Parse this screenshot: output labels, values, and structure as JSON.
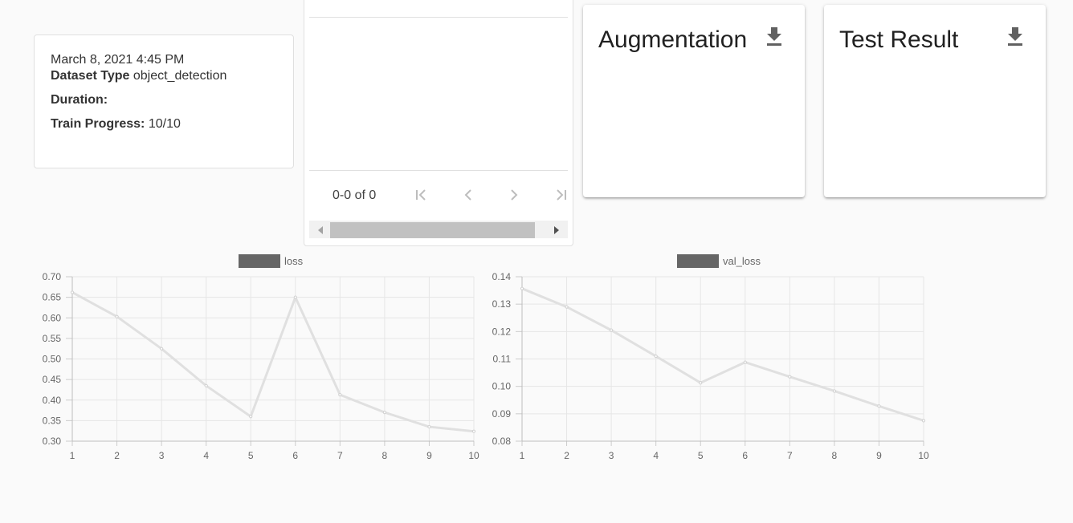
{
  "info": {
    "date": "March 8, 2021 4:45 PM",
    "dataset_type_label": "Dataset Type",
    "dataset_type_value": "object_detection",
    "duration_label": "Duration:",
    "train_progress_label": "Train Progress:",
    "train_progress_value": "10/10"
  },
  "table": {
    "pager_text": "0-0 of 0",
    "icons": [
      "first-page-icon",
      "prev-page-icon",
      "next-page-icon",
      "last-page-icon"
    ]
  },
  "cards": {
    "augmentation_title": "Augmentation",
    "test_result_title": "Test Result",
    "icon": "download-icon"
  },
  "chart_data": [
    {
      "type": "line",
      "x": [
        1,
        2,
        3,
        4,
        5,
        6,
        7,
        8,
        9,
        10
      ],
      "series": [
        {
          "name": "loss",
          "values": [
            0.662,
            0.603,
            0.525,
            0.435,
            0.36,
            0.65,
            0.413,
            0.37,
            0.335,
            0.324
          ]
        }
      ],
      "ylim": [
        0.3,
        0.7
      ],
      "yticks": [
        "0.70",
        "0.65",
        "0.60",
        "0.55",
        "0.50",
        "0.45",
        "0.40",
        "0.35",
        "0.30"
      ],
      "xticks": [
        "1",
        "2",
        "3",
        "4",
        "5",
        "6",
        "7",
        "8",
        "9",
        "10"
      ],
      "legend": "top",
      "grid": true,
      "line_color": "#e0e0e0",
      "legend_swatch": "#666666"
    },
    {
      "type": "line",
      "x": [
        1,
        2,
        3,
        4,
        5,
        6,
        7,
        8,
        9,
        10
      ],
      "series": [
        {
          "name": "val_loss",
          "values": [
            0.1357,
            0.129,
            0.1205,
            0.111,
            0.1013,
            0.1088,
            0.1035,
            0.0983,
            0.0928,
            0.0875
          ]
        }
      ],
      "ylim": [
        0.08,
        0.14
      ],
      "yticks": [
        "0.14",
        "0.13",
        "0.12",
        "0.11",
        "0.10",
        "0.09",
        "0.08"
      ],
      "xticks": [
        "1",
        "2",
        "3",
        "4",
        "5",
        "6",
        "7",
        "8",
        "9",
        "10"
      ],
      "legend": "top",
      "grid": true,
      "line_color": "#e0e0e0",
      "legend_swatch": "#666666"
    }
  ]
}
